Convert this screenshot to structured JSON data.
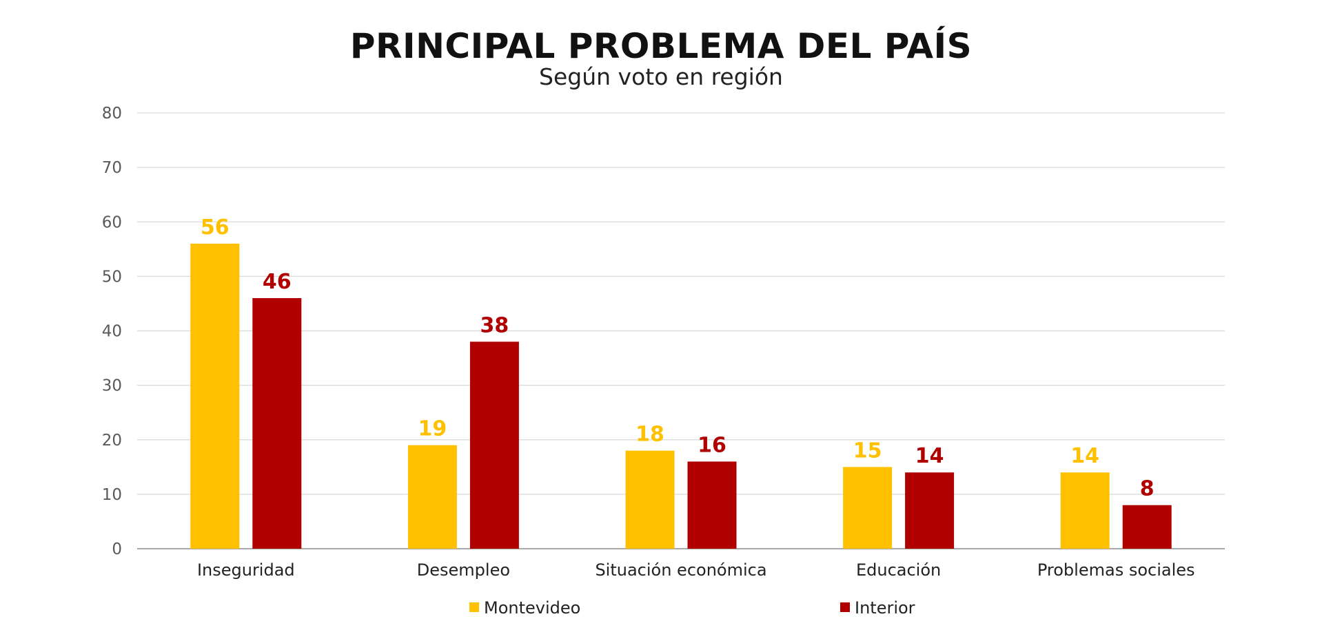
{
  "chart_data": {
    "type": "bar",
    "title": "PRINCIPAL PROBLEMA DEL PAÍS",
    "subtitle": "Según voto en región",
    "xlabel": "",
    "ylabel": "",
    "ylim": [
      0,
      80
    ],
    "yticks": [
      "0",
      "10",
      "20",
      "30",
      "40",
      "50",
      "60",
      "70",
      "80"
    ],
    "grid": true,
    "legend_position": "bottom",
    "categories": [
      "Inseguridad",
      "Desempleo",
      "Situación económica",
      "Educación",
      "Problemas sociales"
    ],
    "series": [
      {
        "name": "Montevideo",
        "color": "#FFC000",
        "values": [
          56,
          19,
          18,
          15,
          14
        ]
      },
      {
        "name": "Interior",
        "color": "#B00000",
        "values": [
          46,
          38,
          16,
          14,
          8
        ]
      }
    ]
  }
}
